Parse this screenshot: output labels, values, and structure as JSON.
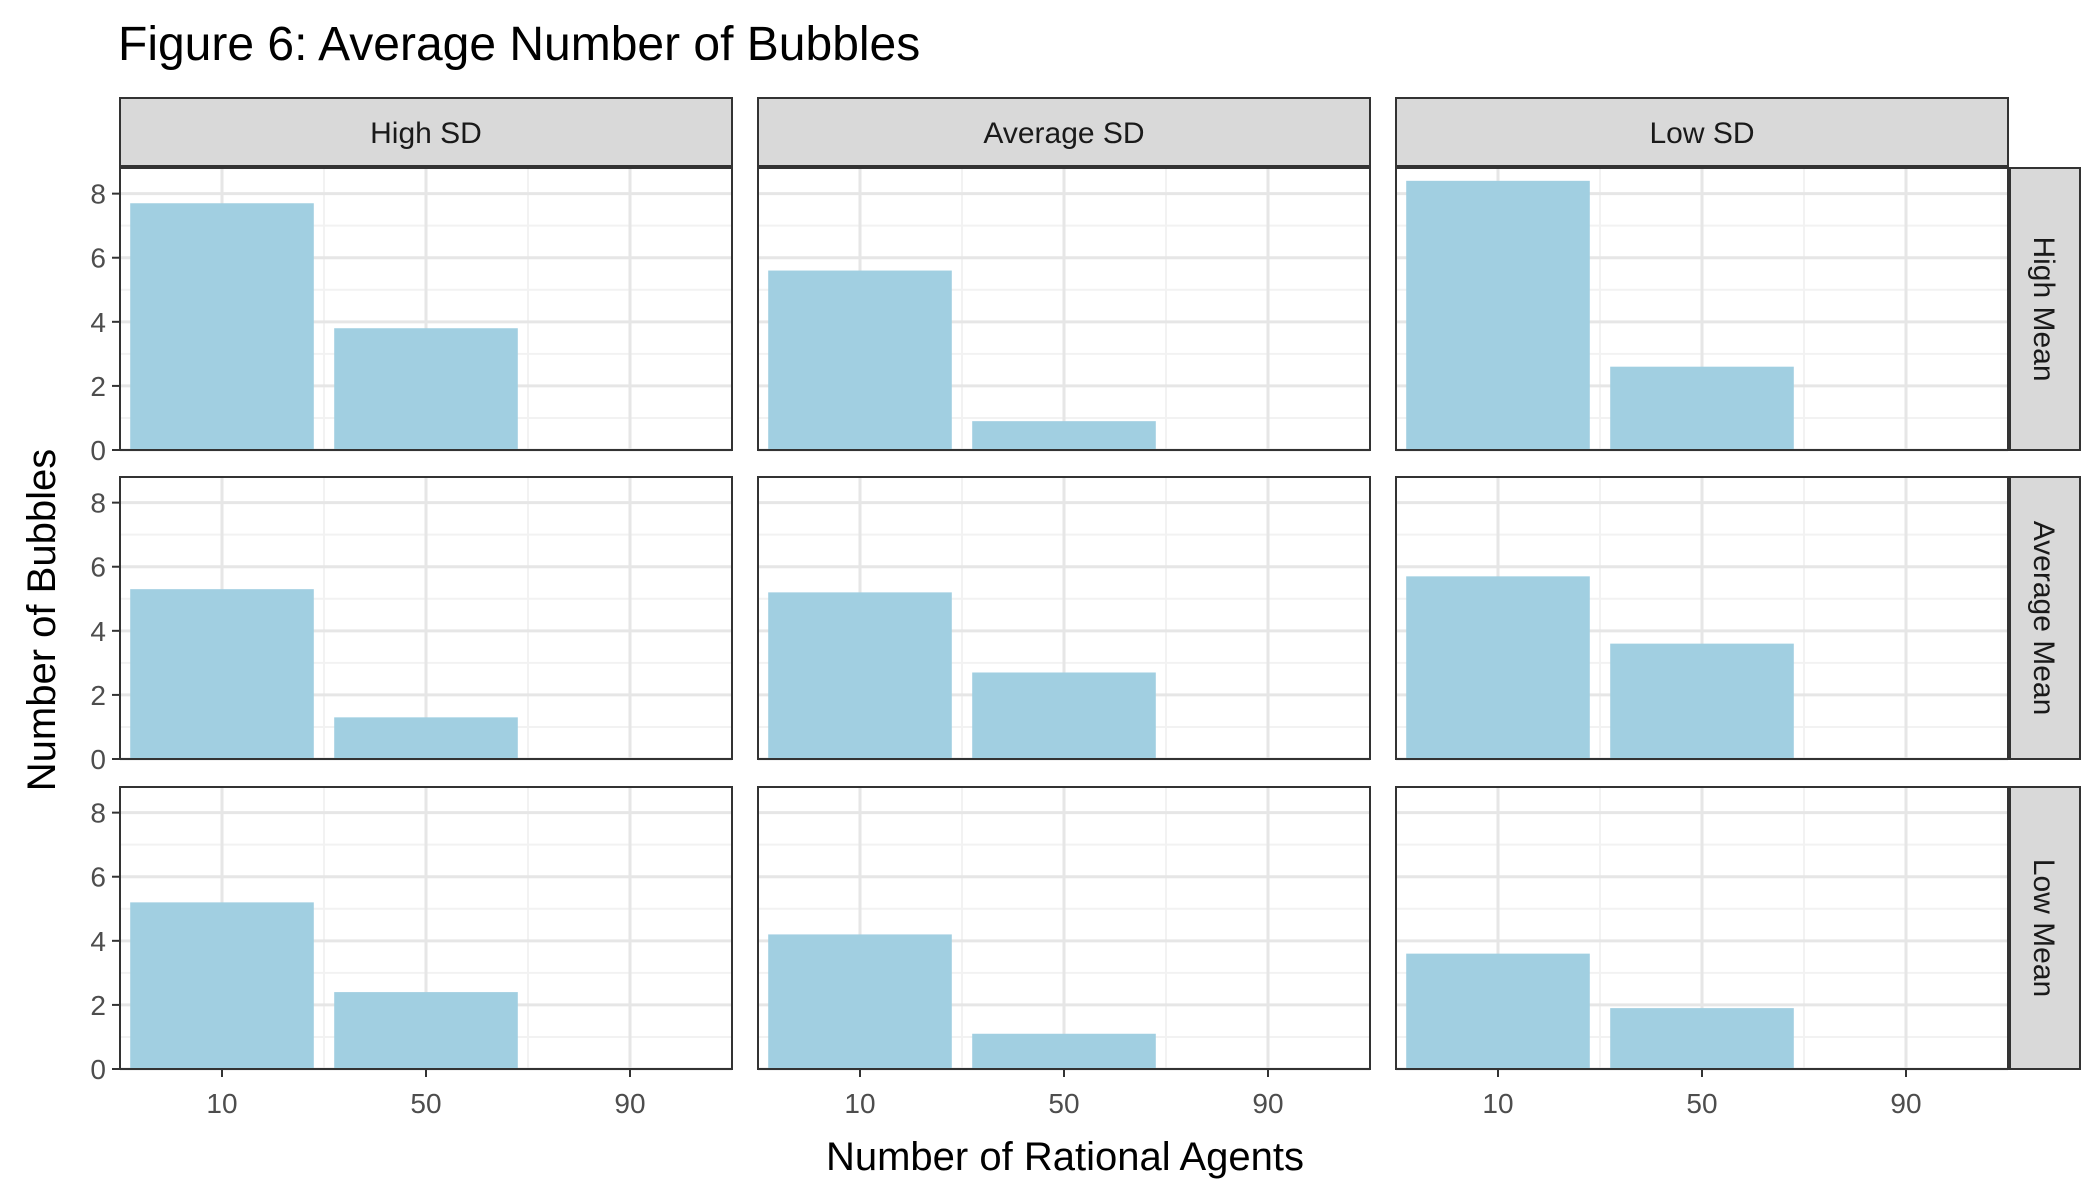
{
  "chart_data": {
    "type": "bar",
    "title": "Figure 6: Average Number of Bubbles",
    "xlabel": "Number of Rational Agents",
    "ylabel": "Number of Bubbles",
    "x_ticks": [
      "10",
      "50",
      "90"
    ],
    "y_ticks": [
      "0",
      "2",
      "4",
      "6",
      "8"
    ],
    "ylim": [
      0,
      8.8
    ],
    "xlim": [
      -10,
      110
    ],
    "grid": true,
    "bar_color": "#A1CFE1",
    "columns": [
      "High SD",
      "Average SD",
      "Low SD"
    ],
    "rows": [
      "High Mean",
      "Average Mean",
      "Low Mean"
    ],
    "panels": [
      {
        "row": "High Mean",
        "col": "High SD",
        "x": [
          10,
          50,
          90
        ],
        "values": [
          7.7,
          3.8,
          0
        ]
      },
      {
        "row": "High Mean",
        "col": "Average SD",
        "x": [
          10,
          50,
          90
        ],
        "values": [
          5.6,
          0.9,
          0
        ]
      },
      {
        "row": "High Mean",
        "col": "Low SD",
        "x": [
          10,
          50,
          90
        ],
        "values": [
          8.4,
          2.6,
          0
        ]
      },
      {
        "row": "Average Mean",
        "col": "High SD",
        "x": [
          10,
          50,
          90
        ],
        "values": [
          5.3,
          1.3,
          0
        ]
      },
      {
        "row": "Average Mean",
        "col": "Average SD",
        "x": [
          10,
          50,
          90
        ],
        "values": [
          5.2,
          2.7,
          0
        ]
      },
      {
        "row": "Average Mean",
        "col": "Low SD",
        "x": [
          10,
          50,
          90
        ],
        "values": [
          5.7,
          3.6,
          0
        ]
      },
      {
        "row": "Low Mean",
        "col": "High SD",
        "x": [
          10,
          50,
          90
        ],
        "values": [
          5.2,
          2.4,
          0
        ]
      },
      {
        "row": "Low Mean",
        "col": "Average SD",
        "x": [
          10,
          50,
          90
        ],
        "values": [
          4.2,
          1.1,
          0
        ]
      },
      {
        "row": "Low Mean",
        "col": "Low SD",
        "x": [
          10,
          50,
          90
        ],
        "values": [
          3.6,
          1.9,
          0
        ]
      }
    ]
  }
}
